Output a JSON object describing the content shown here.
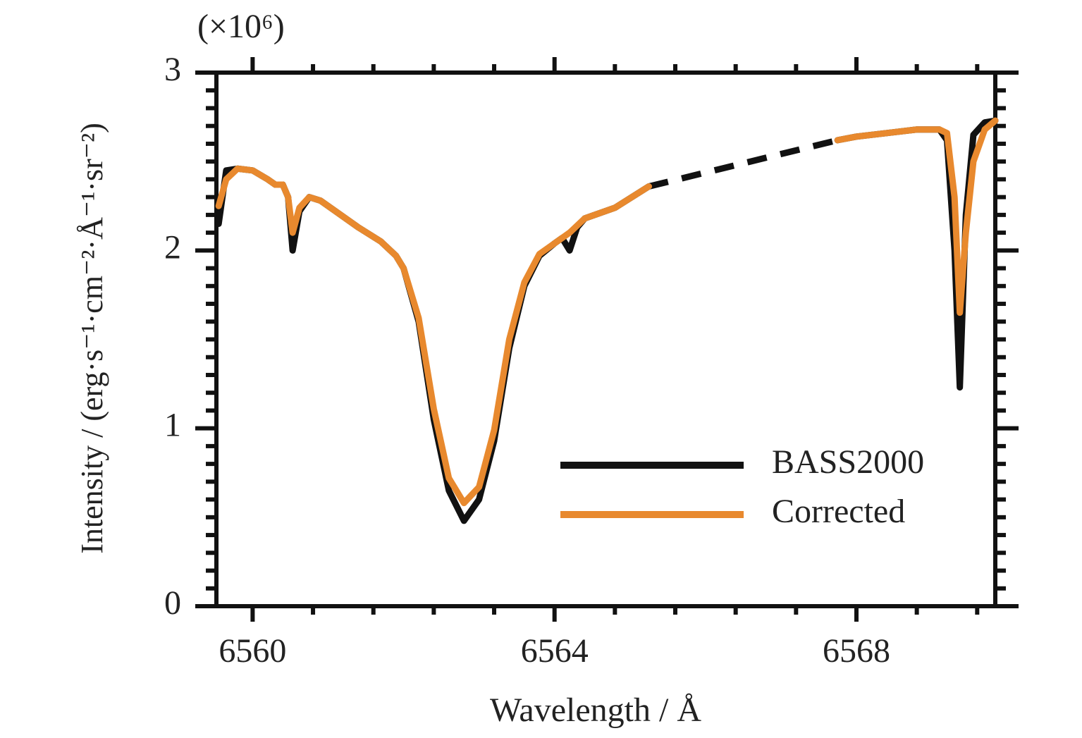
{
  "chart_data": {
    "type": "line",
    "scale_note": "(×10⁶)",
    "xlabel": "Wavelength / Å",
    "ylabel": "Intensity / (erg·s⁻¹·cm⁻²·Å⁻¹·sr⁻²)",
    "x": [
      6559.55,
      6559.65,
      6559.8,
      6560.0,
      6560.2,
      6560.3,
      6560.4,
      6560.47,
      6560.53,
      6560.62,
      6560.75,
      6560.9,
      6561.1,
      6561.4,
      6561.7,
      6561.9,
      6562.0,
      6562.2,
      6562.4,
      6562.6,
      6562.8,
      6563.0,
      6563.2,
      6563.4,
      6563.6,
      6563.8,
      6564.0,
      6564.1,
      6564.2,
      6564.3,
      6564.4,
      6564.8,
      6565.25,
      6566.5,
      6567.75,
      6568.0,
      6568.4,
      6568.8,
      6569.1,
      6569.2,
      6569.3,
      6569.37,
      6569.45,
      6569.55,
      6569.7,
      6569.84
    ],
    "series": [
      {
        "name": "BASS2000",
        "color": "#111111",
        "values": [
          2.15,
          2.45,
          2.46,
          2.45,
          2.4,
          2.37,
          2.37,
          2.3,
          2.0,
          2.22,
          2.3,
          2.28,
          2.22,
          2.13,
          2.05,
          1.97,
          1.9,
          1.6,
          1.05,
          0.65,
          0.48,
          0.6,
          0.93,
          1.45,
          1.8,
          1.97,
          2.04,
          2.07,
          2.0,
          2.13,
          2.18,
          2.24,
          2.36,
          null,
          2.62,
          2.64,
          2.66,
          2.68,
          2.68,
          2.62,
          2.0,
          1.23,
          2.2,
          2.65,
          2.72,
          2.73
        ]
      },
      {
        "name": "Corrected",
        "color": "#e8892e",
        "values": [
          2.25,
          2.4,
          2.46,
          2.45,
          2.4,
          2.37,
          2.37,
          2.3,
          2.1,
          2.24,
          2.3,
          2.28,
          2.22,
          2.13,
          2.05,
          1.97,
          1.9,
          1.62,
          1.11,
          0.72,
          0.58,
          0.67,
          0.99,
          1.5,
          1.82,
          1.98,
          2.04,
          2.07,
          2.1,
          2.14,
          2.18,
          2.24,
          2.36,
          null,
          2.62,
          2.64,
          2.66,
          2.68,
          2.68,
          2.66,
          2.3,
          1.65,
          2.1,
          2.5,
          2.68,
          2.73
        ]
      }
    ],
    "gap_style": "dashed",
    "xlim": [
      6559.52,
      6569.84
    ],
    "ylim": [
      0,
      3
    ],
    "xticks": [
      6560,
      6564,
      6568
    ],
    "yticks": [
      0,
      1,
      2,
      3
    ],
    "xminorticks": [
      6560.8,
      6561.6,
      6562.4,
      6563.2,
      6564.8,
      6565.6,
      6566.4,
      6567.2,
      6568.8,
      6569.6
    ],
    "yminorticks": [
      0.1,
      0.2,
      0.3,
      0.4,
      0.5,
      0.6,
      0.7,
      0.8,
      0.9,
      1.1,
      1.2,
      1.3,
      1.4,
      1.5,
      1.6,
      1.7,
      1.8,
      1.9,
      2.1,
      2.2,
      2.3,
      2.4,
      2.5,
      2.6,
      2.7,
      2.8,
      2.9
    ],
    "legend": "lower right"
  }
}
